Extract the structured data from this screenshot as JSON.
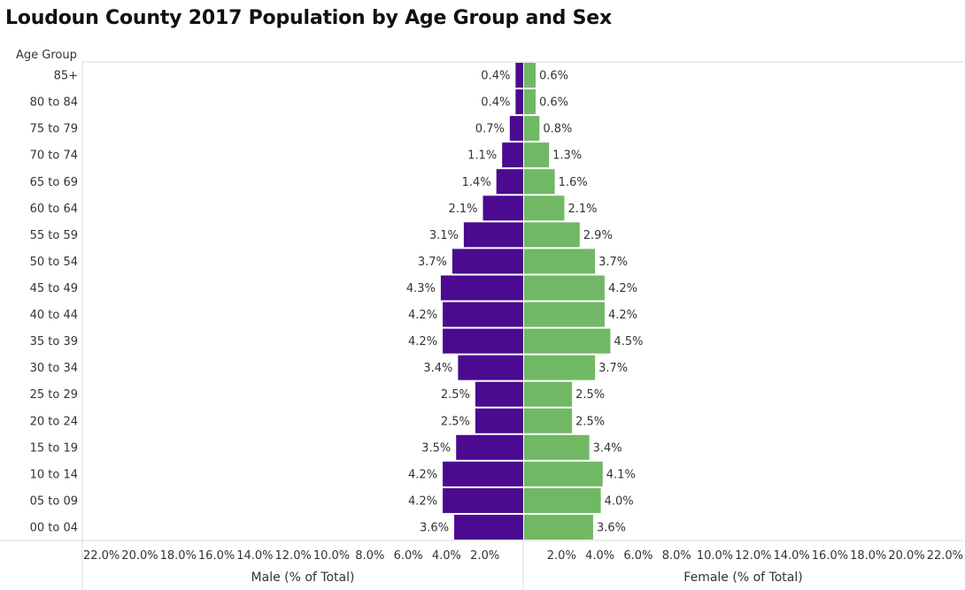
{
  "chart_data": {
    "type": "bar",
    "title": "Loudoun County 2017 Population by Age Group and Sex",
    "row_header": "Age Group",
    "categories": [
      "85+",
      "80 to 84",
      "75 to 79",
      "70 to 74",
      "65 to 69",
      "60 to 64",
      "55 to 59",
      "50 to 54",
      "45 to 49",
      "40 to 44",
      "35 to 39",
      "30 to 34",
      "25 to 29",
      "20 to 24",
      "15 to 19",
      "10 to 14",
      "05 to 09",
      "00 to 04"
    ],
    "series": [
      {
        "name": "Male (% of Total)",
        "color": "#4b0a90",
        "values": [
          0.4,
          0.4,
          0.7,
          1.1,
          1.4,
          2.1,
          3.1,
          3.7,
          4.3,
          4.2,
          4.2,
          3.4,
          2.5,
          2.5,
          3.5,
          4.2,
          4.2,
          3.6
        ],
        "labels": [
          "0.4%",
          "0.4%",
          "0.7%",
          "1.1%",
          "1.4%",
          "2.1%",
          "3.1%",
          "3.7%",
          "4.3%",
          "4.2%",
          "4.2%",
          "3.4%",
          "2.5%",
          "2.5%",
          "3.5%",
          "4.2%",
          "4.2%",
          "3.6%"
        ],
        "xlabel": "Male (% of Total)",
        "ticks": [
          "22.0%",
          "20.0%",
          "18.0%",
          "16.0%",
          "14.0%",
          "12.0%",
          "10.0%",
          "8.0%",
          "6.0%",
          "4.0%",
          "2.0%"
        ],
        "xlim": [
          0,
          23
        ]
      },
      {
        "name": "Female (% of Total)",
        "color": "#71b865",
        "values": [
          0.6,
          0.6,
          0.8,
          1.3,
          1.6,
          2.1,
          2.9,
          3.7,
          4.2,
          4.2,
          4.5,
          3.7,
          2.5,
          2.5,
          3.4,
          4.1,
          4.0,
          3.6
        ],
        "labels": [
          "0.6%",
          "0.6%",
          "0.8%",
          "1.3%",
          "1.6%",
          "2.1%",
          "2.9%",
          "3.7%",
          "4.2%",
          "4.2%",
          "4.5%",
          "3.7%",
          "2.5%",
          "2.5%",
          "3.4%",
          "4.1%",
          "4.0%",
          "3.6%"
        ],
        "xlabel": "Female (% of Total)",
        "ticks": [
          "2.0%",
          "4.0%",
          "6.0%",
          "8.0%",
          "10.0%",
          "12.0%",
          "14.0%",
          "16.0%",
          "18.0%",
          "20.0%",
          "22.0%"
        ],
        "xlim": [
          0,
          23
        ]
      }
    ],
    "grid": false,
    "legend": "none"
  }
}
